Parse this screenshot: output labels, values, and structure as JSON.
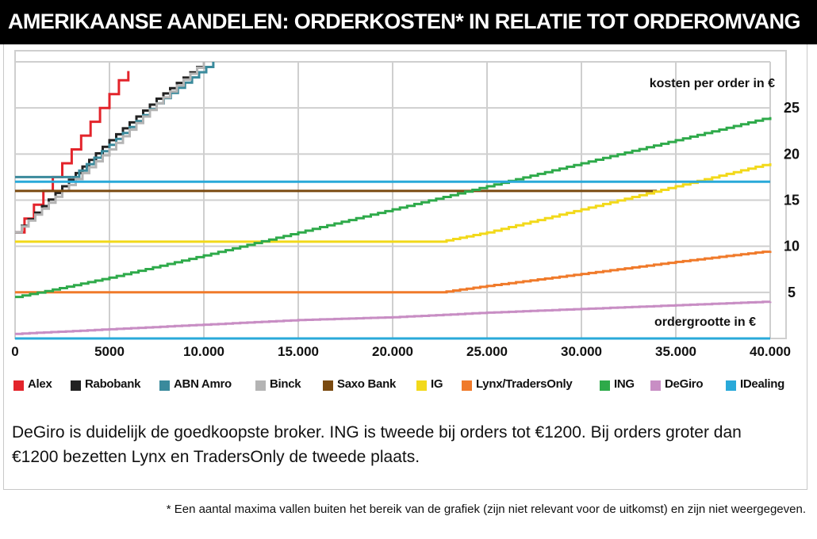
{
  "title": "AMERIKAANSE AANDELEN: ORDERKOSTEN* IN RELATIE TOT ORDEROMVANG",
  "caption": "DeGiro is duidelijk de goedkoopste broker. ING is tweede bij orders tot €1200. Bij orders groter dan €1200 bezetten Lynx en TradersOnly de tweede plaats.",
  "footnote": "* Een aantal maxima vallen buiten het bereik van de grafiek (zijn niet relevant voor de uitkomst) en zijn niet weergegeven.",
  "chart_data": {
    "type": "line",
    "ylabel": "kosten per order in €",
    "xlabel": "ordergrootte in €",
    "xlim": [
      0,
      40000
    ],
    "ylim": [
      0,
      30
    ],
    "x_ticks": [
      0,
      5000,
      10000,
      15000,
      20000,
      25000,
      30000,
      35000,
      40000
    ],
    "x_tick_labels": [
      "0",
      "5000",
      "10.000",
      "15.000",
      "20.000",
      "25.000",
      "30.000",
      "35.000",
      "40.000"
    ],
    "y_ticks": [
      5,
      10,
      15,
      20,
      25
    ],
    "y_tick_labels": [
      "5",
      "10",
      "15",
      "20",
      "25"
    ],
    "grid": true,
    "legend_position": "bottom",
    "series": [
      {
        "name": "Alex",
        "color": "#e3242b",
        "x": [
          0,
          500,
          1000,
          1500,
          2000,
          2500,
          3000,
          3500,
          4000,
          4500,
          5000,
          5500,
          6000
        ],
        "y": [
          11.5,
          13,
          14.5,
          16,
          17.5,
          19,
          20.5,
          22,
          23.5,
          25,
          26.5,
          28,
          29
        ]
      },
      {
        "name": "Rabobank",
        "color": "#222222",
        "x": [
          0,
          2500,
          5000,
          7500,
          10000
        ],
        "y": [
          11.5,
          16.5,
          21.5,
          26,
          30
        ]
      },
      {
        "name": "ABN Amro",
        "color": "#3a8a9c",
        "x": [
          0,
          3000
        ],
        "y": [
          17.5,
          17.5
        ]
      },
      {
        "name": "ABN Amro",
        "color": "#3a8a9c",
        "x": [
          3000,
          5000,
          7500,
          10500
        ],
        "y": [
          17.5,
          21,
          25.5,
          30
        ]
      },
      {
        "name": "Binck",
        "color": "#b4b4b4",
        "x": [
          0,
          2500,
          5000,
          7500,
          10000
        ],
        "y": [
          11.5,
          16,
          20.5,
          25.5,
          30
        ]
      },
      {
        "name": "Saxo Bank",
        "color": "#7a4a10",
        "x": [
          0,
          34000
        ],
        "y": [
          16,
          16
        ]
      },
      {
        "name": "IG",
        "color": "#f2d91a",
        "x": [
          0,
          22500,
          25000,
          30000,
          35000,
          40000
        ],
        "y": [
          10.5,
          10.5,
          11.5,
          14,
          16.5,
          19
        ]
      },
      {
        "name": "Lynx/TradersOnly",
        "color": "#f07a2a",
        "x": [
          0,
          22500,
          25000,
          30000,
          35000,
          40000
        ],
        "y": [
          5,
          5,
          5.7,
          7,
          8.3,
          9.5
        ]
      },
      {
        "name": "ING",
        "color": "#2eaa4a",
        "x": [
          0,
          2000,
          5000,
          10000,
          15000,
          20000,
          25000,
          30000,
          35000,
          40000
        ],
        "y": [
          4.5,
          5.3,
          6.6,
          9,
          11.5,
          14,
          16.5,
          19,
          21.5,
          24
        ]
      },
      {
        "name": "DeGiro",
        "color": "#c88ec4",
        "x": [
          0,
          5000,
          10000,
          15000,
          20000,
          25000,
          30000,
          35000,
          40000
        ],
        "y": [
          0.5,
          1,
          1.5,
          2,
          2.3,
          2.8,
          3.2,
          3.6,
          4
        ]
      },
      {
        "name": "IDealing",
        "color": "#29a9d9",
        "x": [
          0,
          40000
        ],
        "y": [
          17,
          17
        ]
      },
      {
        "name": "IDealing",
        "color": "#29a9d9",
        "x": [
          0,
          40000
        ],
        "y": [
          0,
          0
        ]
      }
    ],
    "legend": [
      {
        "name": "Alex",
        "color": "#e3242b"
      },
      {
        "name": "Rabobank",
        "color": "#222222"
      },
      {
        "name": "ABN Amro",
        "color": "#3a8a9c"
      },
      {
        "name": "Binck",
        "color": "#b4b4b4"
      },
      {
        "name": "Saxo Bank",
        "color": "#7a4a10"
      },
      {
        "name": "IG",
        "color": "#f2d91a"
      },
      {
        "name": "Lynx/TradersOnly",
        "color": "#f07a2a"
      },
      {
        "name": "ING",
        "color": "#2eaa4a"
      },
      {
        "name": "DeGiro",
        "color": "#c88ec4"
      },
      {
        "name": "IDealing",
        "color": "#29a9d9"
      }
    ]
  }
}
